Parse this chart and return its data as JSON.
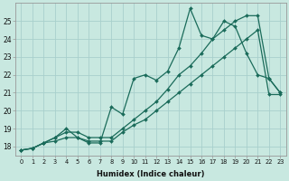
{
  "bg_color": "#c8e8e0",
  "line_color": "#1a6b5a",
  "grid_color": "#a8d0cc",
  "xlabel": "Humidex (Indice chaleur)",
  "xlim": [
    -0.5,
    23.5
  ],
  "ylim": [
    17.5,
    26.0
  ],
  "yticks": [
    18,
    19,
    20,
    21,
    22,
    23,
    24,
    25
  ],
  "xticks": [
    0,
    1,
    2,
    3,
    4,
    5,
    6,
    7,
    8,
    9,
    10,
    11,
    12,
    13,
    14,
    15,
    16,
    17,
    18,
    19,
    20,
    21,
    22,
    23
  ],
  "line1_x": [
    0,
    1,
    2,
    3,
    4,
    5,
    6,
    7,
    8,
    9,
    10,
    11,
    12,
    13,
    14,
    15,
    16,
    17,
    18,
    19,
    20,
    21,
    22,
    23
  ],
  "line1_y": [
    17.8,
    17.9,
    18.2,
    18.3,
    18.5,
    18.5,
    18.3,
    18.3,
    18.3,
    18.8,
    19.2,
    19.5,
    20.0,
    20.5,
    21.0,
    21.5,
    22.0,
    22.5,
    23.0,
    23.5,
    24.0,
    24.5,
    20.9,
    20.9
  ],
  "line2_x": [
    0,
    1,
    2,
    3,
    4,
    5,
    6,
    7,
    8,
    9,
    10,
    11,
    12,
    13,
    14,
    15,
    16,
    17,
    18,
    19,
    20,
    21,
    22,
    23
  ],
  "line2_y": [
    17.8,
    17.9,
    18.2,
    18.5,
    19.0,
    18.5,
    18.2,
    18.2,
    20.2,
    19.8,
    21.8,
    22.0,
    21.7,
    22.2,
    23.5,
    25.7,
    24.2,
    24.0,
    25.0,
    24.7,
    23.2,
    22.0,
    21.8,
    21.0
  ],
  "line3_x": [
    0,
    1,
    2,
    3,
    4,
    5,
    6,
    7,
    8,
    9,
    10,
    11,
    12,
    13,
    14,
    15,
    16,
    17,
    18,
    19,
    20,
    21,
    22,
    23
  ],
  "line3_y": [
    17.8,
    17.9,
    18.2,
    18.5,
    18.8,
    18.8,
    18.5,
    18.5,
    18.5,
    19.0,
    19.5,
    20.0,
    20.5,
    21.2,
    22.0,
    22.5,
    23.2,
    24.0,
    24.5,
    25.0,
    25.3,
    25.3,
    21.8,
    21.0
  ]
}
